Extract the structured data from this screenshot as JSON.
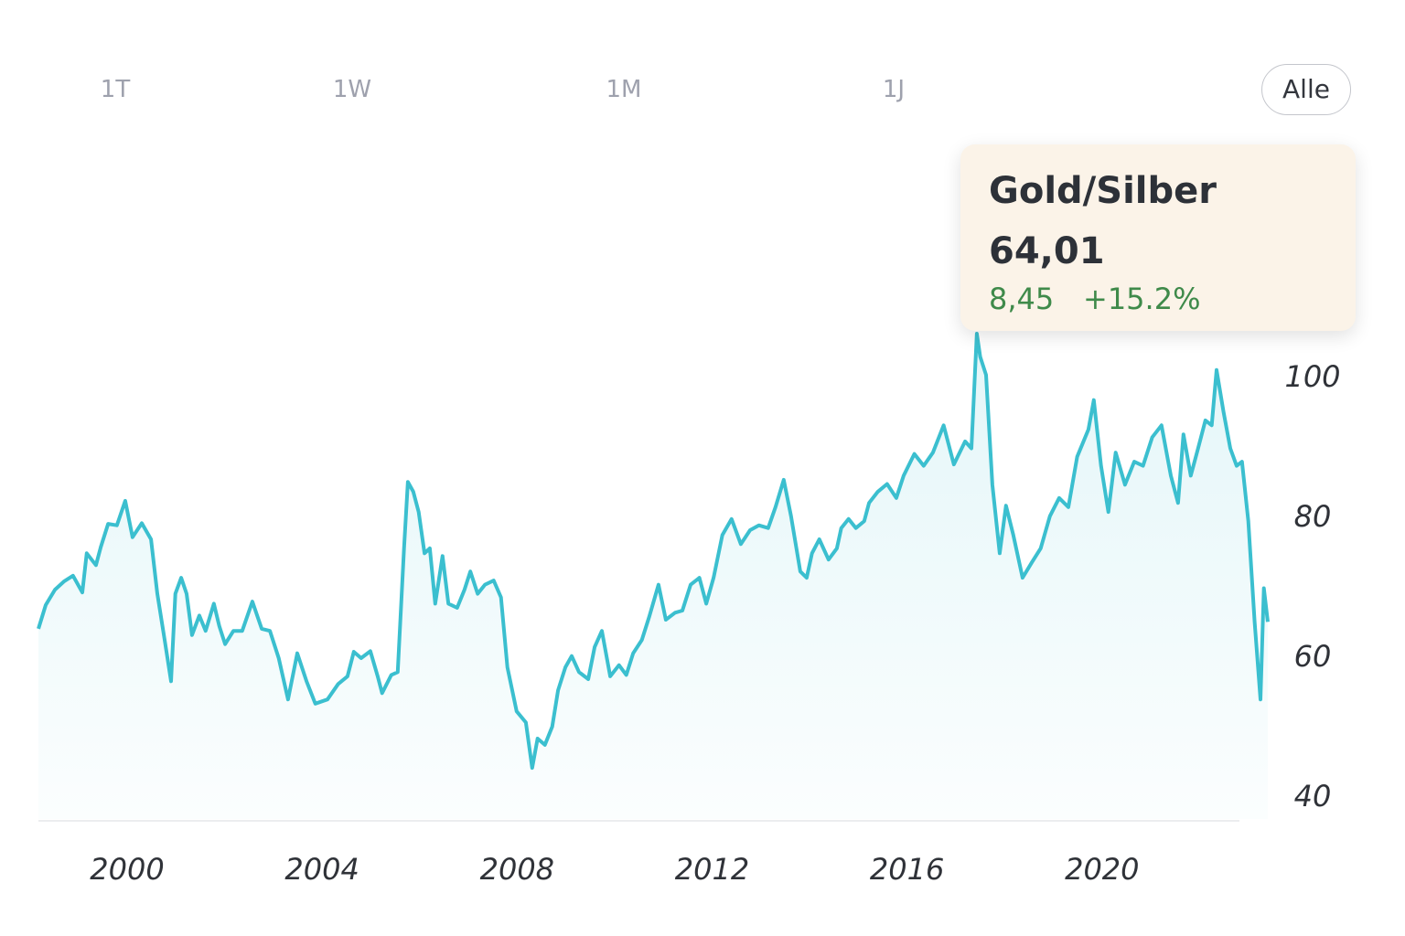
{
  "tabs": [
    {
      "label": "1T",
      "active": false
    },
    {
      "label": "1W",
      "active": false
    },
    {
      "label": "1M",
      "active": false
    },
    {
      "label": "1J",
      "active": false
    },
    {
      "label": "Alle",
      "active": true
    }
  ],
  "tooltip": {
    "title": "Gold/Silber",
    "value": "64,01",
    "change": "8,45",
    "change_pct": "+15.2%"
  },
  "chart_data": {
    "type": "line",
    "color": "#3bbfcf",
    "x": [
      1998.18,
      1998.33,
      1998.52,
      1998.71,
      1998.89,
      1999.08,
      1999.17,
      1999.36,
      1999.46,
      1999.61,
      1999.79,
      1999.96,
      2000.11,
      2000.3,
      2000.49,
      2000.62,
      2000.77,
      2000.9,
      2000.99,
      2001.11,
      2001.22,
      2001.33,
      2001.48,
      2001.61,
      2001.78,
      2001.89,
      2002.01,
      2002.18,
      2002.36,
      2002.57,
      2002.76,
      2002.93,
      2003.11,
      2003.3,
      2003.49,
      2003.68,
      2003.86,
      2004.11,
      2004.33,
      2004.52,
      2004.65,
      2004.8,
      2004.99,
      2005.14,
      2005.23,
      2005.42,
      2005.55,
      2005.68,
      2005.76,
      2005.87,
      2005.98,
      2006.1,
      2006.21,
      2006.32,
      2006.47,
      2006.59,
      2006.77,
      2006.92,
      2007.04,
      2007.19,
      2007.34,
      2007.52,
      2007.67,
      2007.8,
      2007.99,
      2008.18,
      2008.31,
      2008.42,
      2008.57,
      2008.72,
      2008.84,
      2008.99,
      2009.12,
      2009.27,
      2009.46,
      2009.59,
      2009.74,
      2009.91,
      2010.09,
      2010.24,
      2010.38,
      2010.56,
      2010.71,
      2010.9,
      2011.05,
      2011.24,
      2011.39,
      2011.56,
      2011.74,
      2011.88,
      2012.03,
      2012.21,
      2012.4,
      2012.59,
      2012.78,
      2012.96,
      2013.15,
      2013.3,
      2013.47,
      2013.62,
      2013.81,
      2013.94,
      2014.05,
      2014.2,
      2014.39,
      2014.56,
      2014.65,
      2014.8,
      2014.95,
      2015.12,
      2015.22,
      2015.4,
      2015.59,
      2015.78,
      2015.93,
      2016.15,
      2016.34,
      2016.53,
      2016.75,
      2016.96,
      2017.19,
      2017.32,
      2017.43,
      2017.5,
      2017.62,
      2017.75,
      2017.9,
      2018.03,
      2018.18,
      2018.37,
      2018.56,
      2018.74,
      2018.93,
      2019.12,
      2019.31,
      2019.49,
      2019.72,
      2019.83,
      2019.98,
      2020.13,
      2020.28,
      2020.47,
      2020.66,
      2020.84,
      2021.03,
      2021.22,
      2021.41,
      2021.56,
      2021.67,
      2021.82,
      2021.97,
      2022.12,
      2022.25,
      2022.35,
      2022.49,
      2022.63,
      2022.76,
      2022.87,
      2023.0,
      2023.13,
      2023.25,
      2023.32,
      2023.4
    ],
    "values": [
      64.2,
      67.6,
      69.8,
      71,
      71.8,
      69.4,
      75,
      73.3,
      75.9,
      79.2,
      79,
      82.5,
      77.3,
      79.3,
      77,
      69.2,
      62.6,
      56.7,
      69.2,
      71.5,
      69.2,
      63.3,
      66.1,
      63.9,
      67.8,
      64.6,
      62,
      63.9,
      63.9,
      68.1,
      64.2,
      63.9,
      60,
      54.1,
      60.7,
      56.7,
      53.5,
      54.1,
      56.3,
      57.4,
      60.9,
      60,
      61,
      57.4,
      55,
      57.6,
      58,
      75.7,
      85.2,
      83.8,
      80.9,
      75,
      75.7,
      67.8,
      74.6,
      67.8,
      67.2,
      69.8,
      72.4,
      69.2,
      70.5,
      71.1,
      68.7,
      58.7,
      52.4,
      50.8,
      44.3,
      48.5,
      47.6,
      50.2,
      55.4,
      58.7,
      60.3,
      58,
      57,
      61.6,
      63.9,
      57.4,
      59,
      57.6,
      60.7,
      62.6,
      65.9,
      70.5,
      65.5,
      66.5,
      66.8,
      70.5,
      71.5,
      67.8,
      71.5,
      77.6,
      79.9,
      76.3,
      78.3,
      79,
      78.6,
      81.6,
      85.5,
      80.3,
      72.4,
      71.5,
      75,
      77,
      74.1,
      75.7,
      78.6,
      79.9,
      78.6,
      79.6,
      82.2,
      83.8,
      84.9,
      82.9,
      86.1,
      89.2,
      87.5,
      89.4,
      93.3,
      87.7,
      91,
      90,
      106.4,
      103.1,
      100.5,
      84.8,
      75,
      81.8,
      77.6,
      71.5,
      73.7,
      75.7,
      80.3,
      82.9,
      81.6,
      88.8,
      92.7,
      96.9,
      87.5,
      80.9,
      89.4,
      84.8,
      88.1,
      87.5,
      91.6,
      93.3,
      86.1,
      82.2,
      92,
      86.1,
      90,
      94,
      93.3,
      101.2,
      95.3,
      90,
      87.5,
      88.1,
      79.6,
      65.2,
      54.1,
      70,
      65.2
    ],
    "xlim": [
      1998.18,
      2023.4
    ],
    "ylim": [
      37,
      110
    ],
    "xticks": [
      2000,
      2004,
      2008,
      2012,
      2016,
      2020
    ],
    "yticks": [
      40,
      60,
      80,
      100
    ]
  }
}
